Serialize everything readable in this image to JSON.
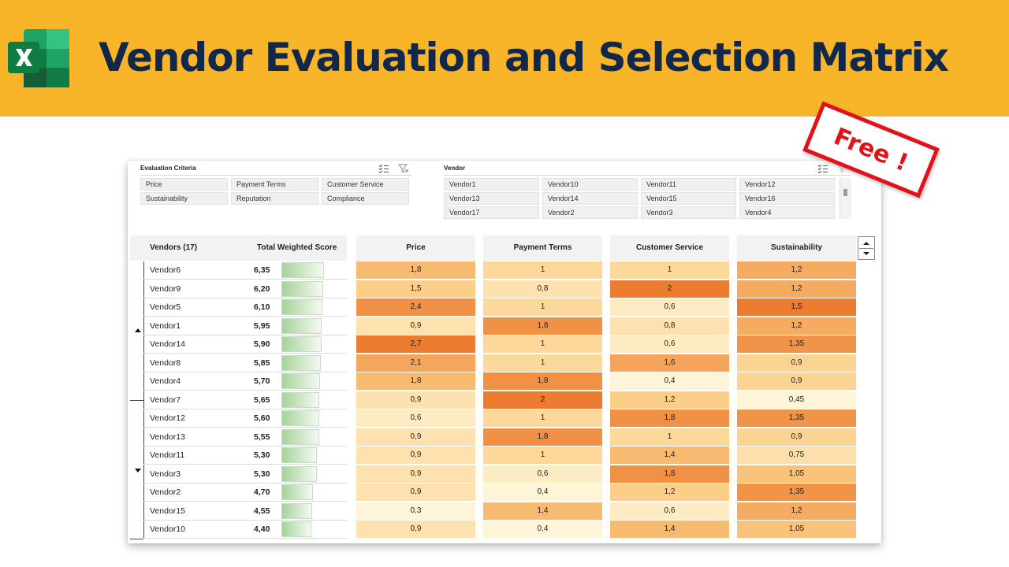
{
  "banner": {
    "title": "Vendor Evaluation and Selection Matrix",
    "app_icon": "excel-logo",
    "background_color": "#F8B52A",
    "title_color": "#12284A"
  },
  "stamp": {
    "text": "Free !",
    "color": "#E2121B"
  },
  "criteria_slicer": {
    "title": "Evaluation Criteria",
    "icons": [
      "multi-select-icon",
      "clear-filter-icon"
    ],
    "items": [
      "Price",
      "Payment Terms",
      "Customer Service",
      "Sustainability",
      "Reputation",
      "Compliance"
    ]
  },
  "vendor_slicer": {
    "title": "Vendor",
    "icons": [
      "multi-select-icon",
      "clear-filter-icon"
    ],
    "items": [
      "Vendor1",
      "Vendor10",
      "Vendor11",
      "Vendor12",
      "Vendor13",
      "Vendor14",
      "Vendor15",
      "Vendor16",
      "Vendor17",
      "Vendor2",
      "Vendor3",
      "Vendor4"
    ]
  },
  "table": {
    "vendors_header": "Vendors (17)",
    "score_header": "Total Weighted Score",
    "score_max": 7,
    "criteria_headers": [
      "Price",
      "Payment Terms",
      "Customer Service",
      "Sustainability"
    ],
    "rows": [
      {
        "vendor": "Vendor6",
        "score": "6,35",
        "cells": [
          "1,8",
          "1",
          "1",
          "1,2"
        ]
      },
      {
        "vendor": "Vendor9",
        "score": "6,20",
        "cells": [
          "1,5",
          "0,8",
          "2",
          "1,2"
        ]
      },
      {
        "vendor": "Vendor5",
        "score": "6,10",
        "cells": [
          "2,4",
          "1",
          "0,6",
          "1,5"
        ]
      },
      {
        "vendor": "Vendor1",
        "score": "5,95",
        "cells": [
          "0,9",
          "1,8",
          "0,8",
          "1,2"
        ]
      },
      {
        "vendor": "Vendor14",
        "score": "5,90",
        "cells": [
          "2,7",
          "1",
          "0,6",
          "1,35"
        ]
      },
      {
        "vendor": "Vendor8",
        "score": "5,85",
        "cells": [
          "2,1",
          "1",
          "1,6",
          "0,9"
        ]
      },
      {
        "vendor": "Vendor4",
        "score": "5,70",
        "cells": [
          "1,8",
          "1,8",
          "0,4",
          "0,9"
        ]
      },
      {
        "vendor": "Vendor7",
        "score": "5,65",
        "cells": [
          "0,9",
          "2",
          "1,2",
          "0,45"
        ]
      },
      {
        "vendor": "Vendor12",
        "score": "5,60",
        "cells": [
          "0,6",
          "1",
          "1,8",
          "1,35"
        ]
      },
      {
        "vendor": "Vendor13",
        "score": "5,55",
        "cells": [
          "0,9",
          "1,8",
          "1",
          "0,9"
        ]
      },
      {
        "vendor": "Vendor11",
        "score": "5,30",
        "cells": [
          "0,9",
          "1",
          "1,4",
          "0,75"
        ]
      },
      {
        "vendor": "Vendor3",
        "score": "5,30",
        "cells": [
          "0,9",
          "0,6",
          "1,8",
          "1,05"
        ]
      },
      {
        "vendor": "Vendor2",
        "score": "4,70",
        "cells": [
          "0,9",
          "0,4",
          "1,2",
          "1,35"
        ]
      },
      {
        "vendor": "Vendor15",
        "score": "4,55",
        "cells": [
          "0,3",
          "1,4",
          "0,6",
          "1,2"
        ]
      },
      {
        "vendor": "Vendor10",
        "score": "4,40",
        "cells": [
          "0,9",
          "0,4",
          "1,4",
          "1,05"
        ]
      }
    ]
  },
  "colors": {
    "heat_low": "#FEF4D8",
    "heat_mid": "#FBCF87",
    "heat_high": "#EC7C30",
    "databar": "#A7D29B",
    "header_bg": "#F2F2F2"
  }
}
